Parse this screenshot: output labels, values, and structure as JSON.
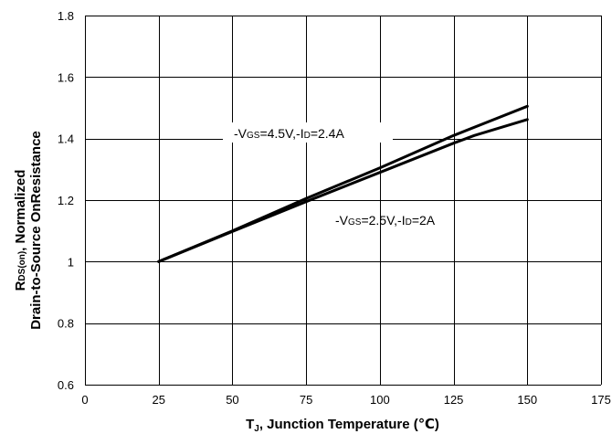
{
  "chart_data": {
    "type": "line",
    "xlabel": {
      "main": "T",
      "sub": "J",
      "rest": ", Junction Temperature (℃)"
    },
    "ylabel": {
      "line1_main": "R",
      "line1_sub": "DS(on)",
      "line1_rest": ", Normalized",
      "line2": "Drain-to-Source OnResistance"
    },
    "xlim": [
      0,
      175
    ],
    "ylim": [
      0.6,
      1.8
    ],
    "xticks": [
      0,
      25,
      50,
      75,
      100,
      125,
      150,
      175
    ],
    "yticks": [
      0.6,
      0.8,
      1,
      1.2,
      1.4,
      1.6,
      1.8
    ],
    "xtick_labels": [
      "0",
      "25",
      "50",
      "75",
      "100",
      "125",
      "150",
      "175"
    ],
    "ytick_labels": [
      "0.6",
      "0.8",
      "1",
      "1.2",
      "1.4",
      "1.6",
      "1.8"
    ],
    "grid": true,
    "series": [
      {
        "label": {
          "p1": "-V",
          "s1": "GS",
          "p2": "=4.5V,-I",
          "s2": "D",
          "p3": "=2.4A"
        },
        "x": [
          25,
          50,
          75,
          100,
          125,
          150
        ],
        "y": [
          1.0,
          1.1,
          1.205,
          1.305,
          1.41,
          1.505
        ]
      },
      {
        "label": {
          "p1": "-V",
          "s1": "GS",
          "p2": "=2.5V,-I",
          "s2": "D",
          "p3": "=2A"
        },
        "x": [
          25,
          50,
          75,
          100,
          125,
          132,
          150
        ],
        "y": [
          1.0,
          1.098,
          1.195,
          1.29,
          1.385,
          1.41,
          1.462
        ]
      }
    ]
  }
}
